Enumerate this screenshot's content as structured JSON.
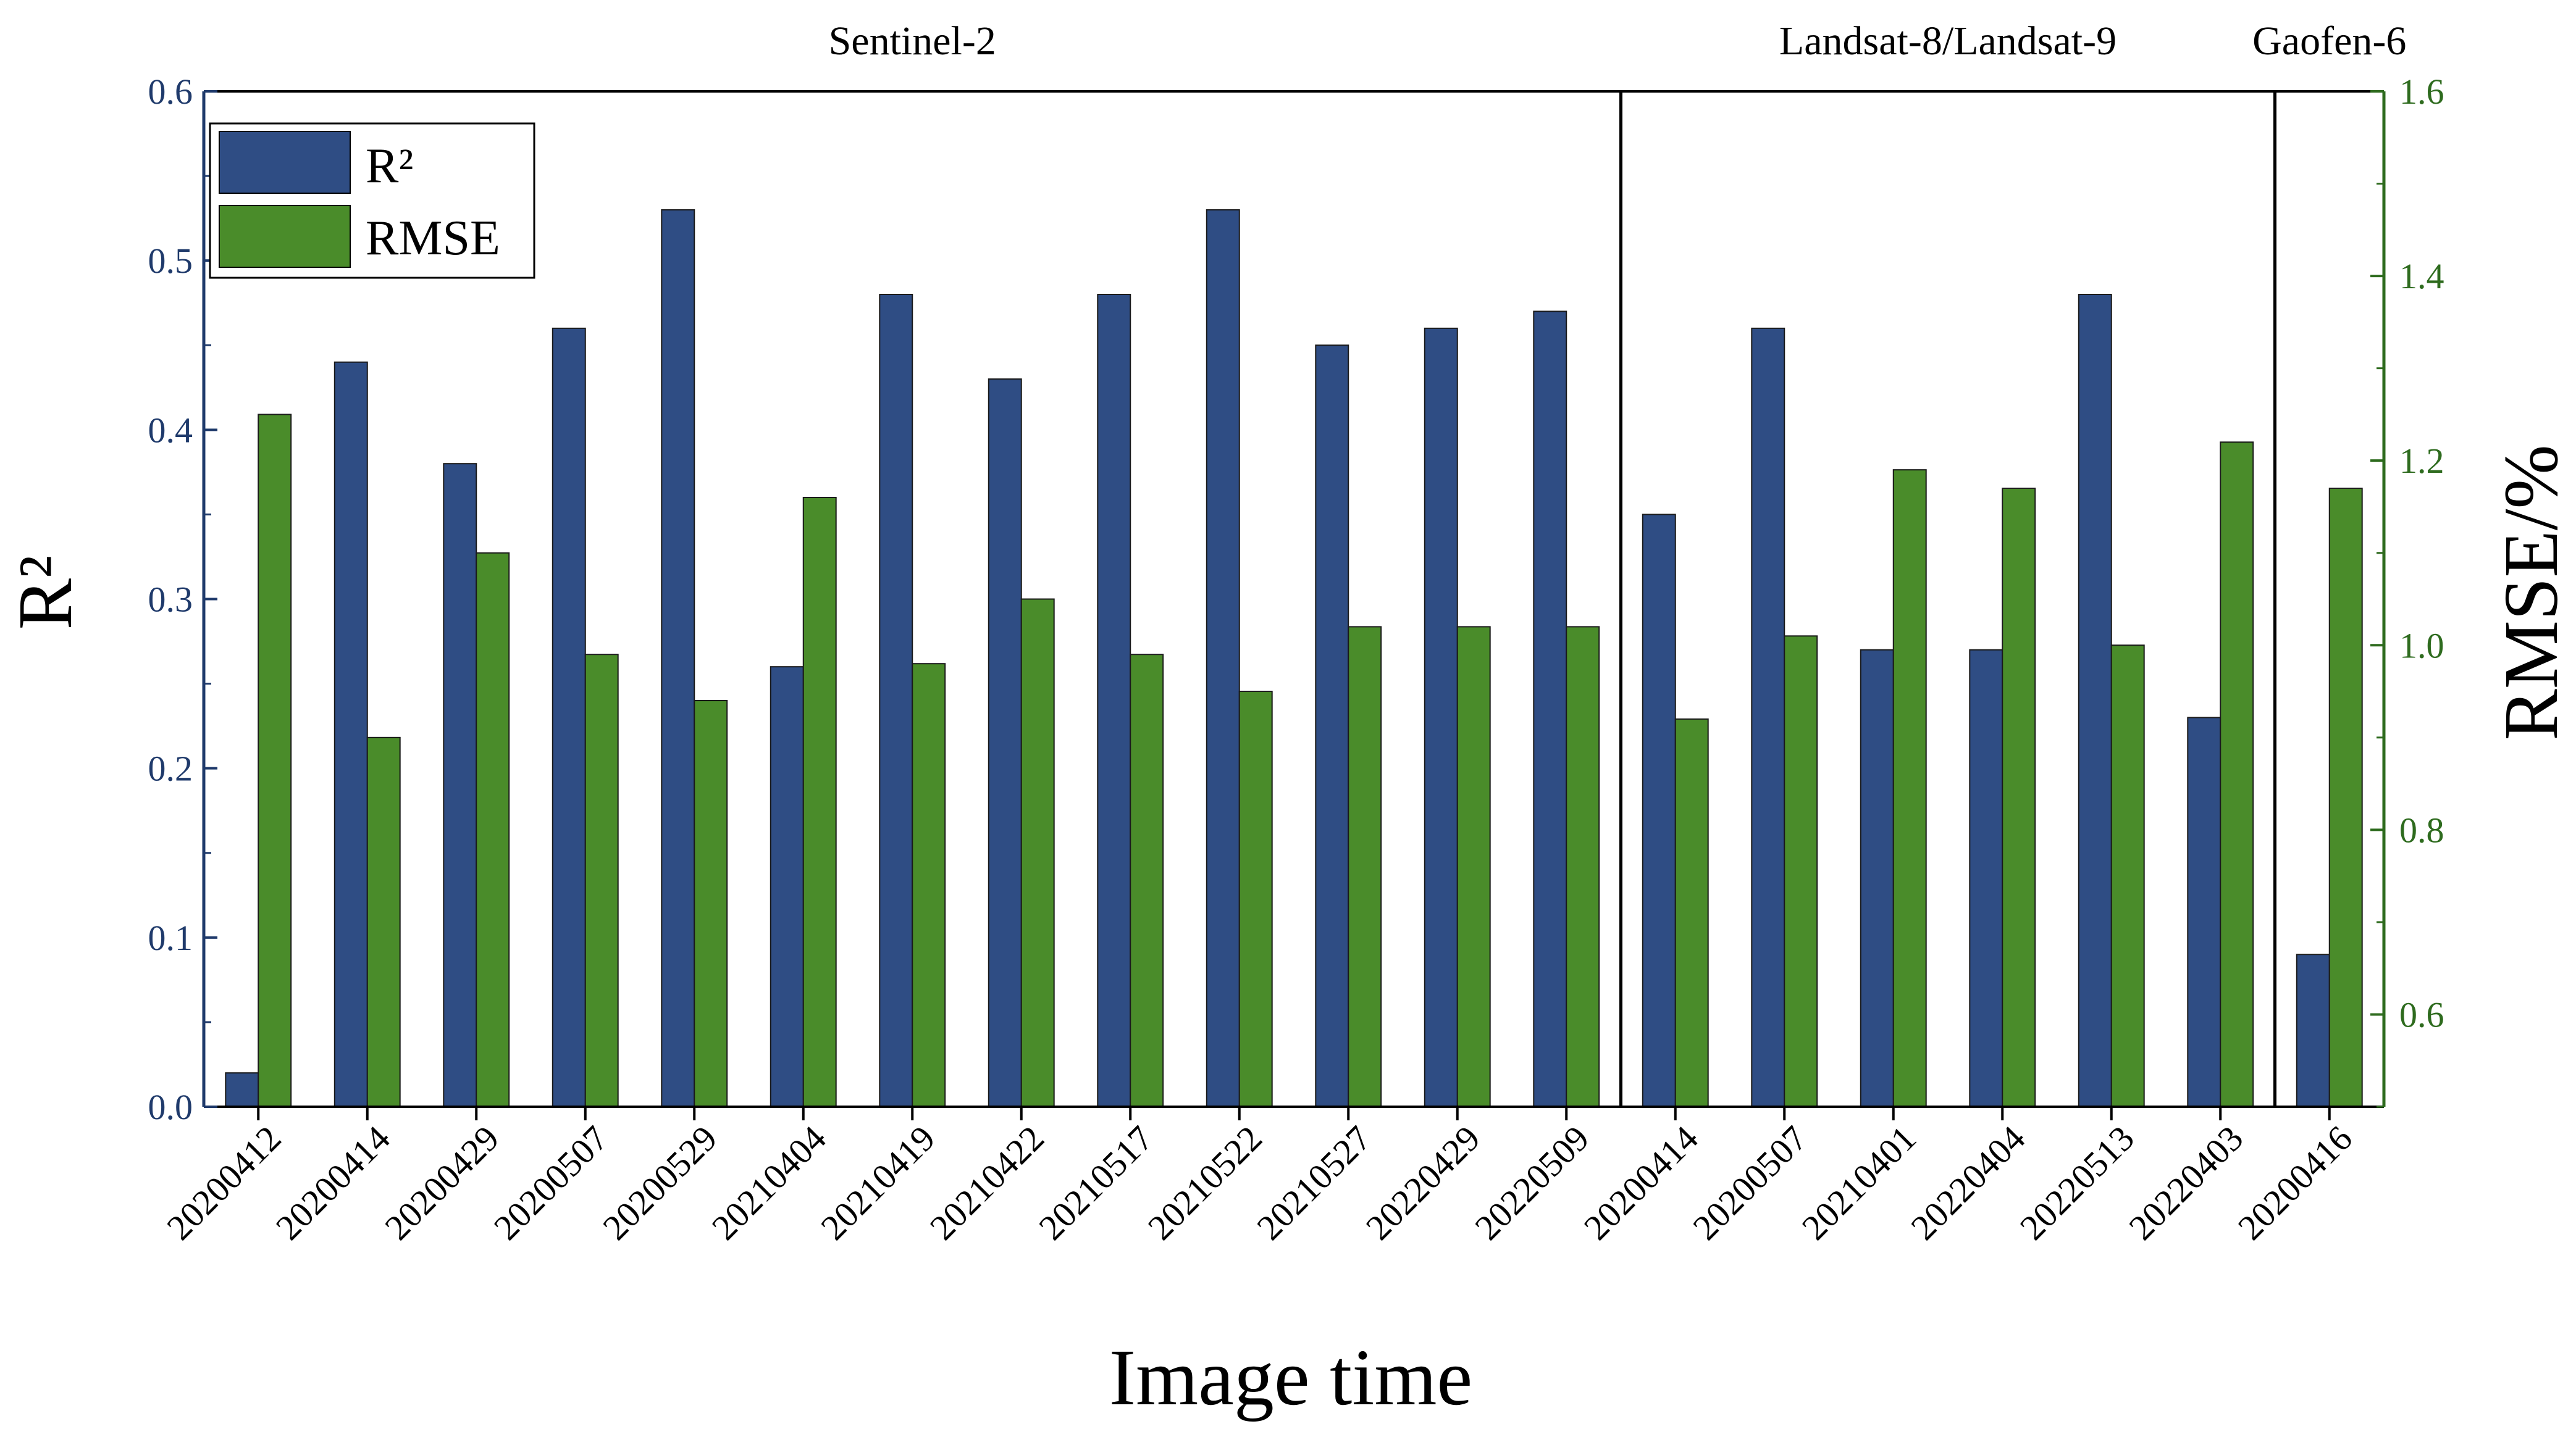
{
  "chart_data": {
    "type": "bar",
    "title": "",
    "xlabel": "Image time",
    "ylabel": "R²",
    "ylabel_right": "RMSE/%",
    "ylim": [
      0.0,
      0.6
    ],
    "ylim_right": [
      0.5,
      1.6
    ],
    "yticks": [
      "0.0",
      "0.1",
      "0.2",
      "0.3",
      "0.4",
      "0.5",
      "0.6"
    ],
    "yticks_right": [
      "0.6",
      "0.8",
      "1.0",
      "1.2",
      "1.4",
      "1.6"
    ],
    "categories": [
      "20200412",
      "20200414",
      "20200429",
      "20200507",
      "20200529",
      "20210404",
      "20210419",
      "20210422",
      "20210517",
      "20210522",
      "20210527",
      "20220429",
      "20220509",
      "20200414",
      "20200507",
      "20210401",
      "20220404",
      "20220513",
      "20220403",
      "20200416"
    ],
    "groups": [
      {
        "name": "Sentinel-2",
        "start": 0,
        "end": 12
      },
      {
        "name": "Landsat-8/Landsat-9",
        "start": 13,
        "end": 18
      },
      {
        "name": "Gaofen-6",
        "start": 19,
        "end": 19
      }
    ],
    "series": [
      {
        "name": "R²",
        "axis": "left",
        "color": "#2f4d84",
        "values": [
          0.02,
          0.44,
          0.38,
          0.46,
          0.53,
          0.26,
          0.48,
          0.43,
          0.48,
          0.53,
          0.45,
          0.46,
          0.47,
          0.35,
          0.46,
          0.27,
          0.27,
          0.48,
          0.23,
          0.09
        ]
      },
      {
        "name": "RMSE",
        "axis": "right",
        "color": "#4a8c2a",
        "values": [
          1.25,
          0.9,
          1.1,
          0.99,
          0.94,
          1.16,
          0.98,
          1.05,
          0.99,
          0.95,
          1.02,
          1.02,
          1.02,
          0.92,
          1.01,
          1.19,
          1.17,
          1.0,
          1.22,
          1.17
        ]
      }
    ],
    "legend": {
      "position": "top-left",
      "entries": [
        "R²",
        "RMSE"
      ]
    },
    "grid": false
  }
}
